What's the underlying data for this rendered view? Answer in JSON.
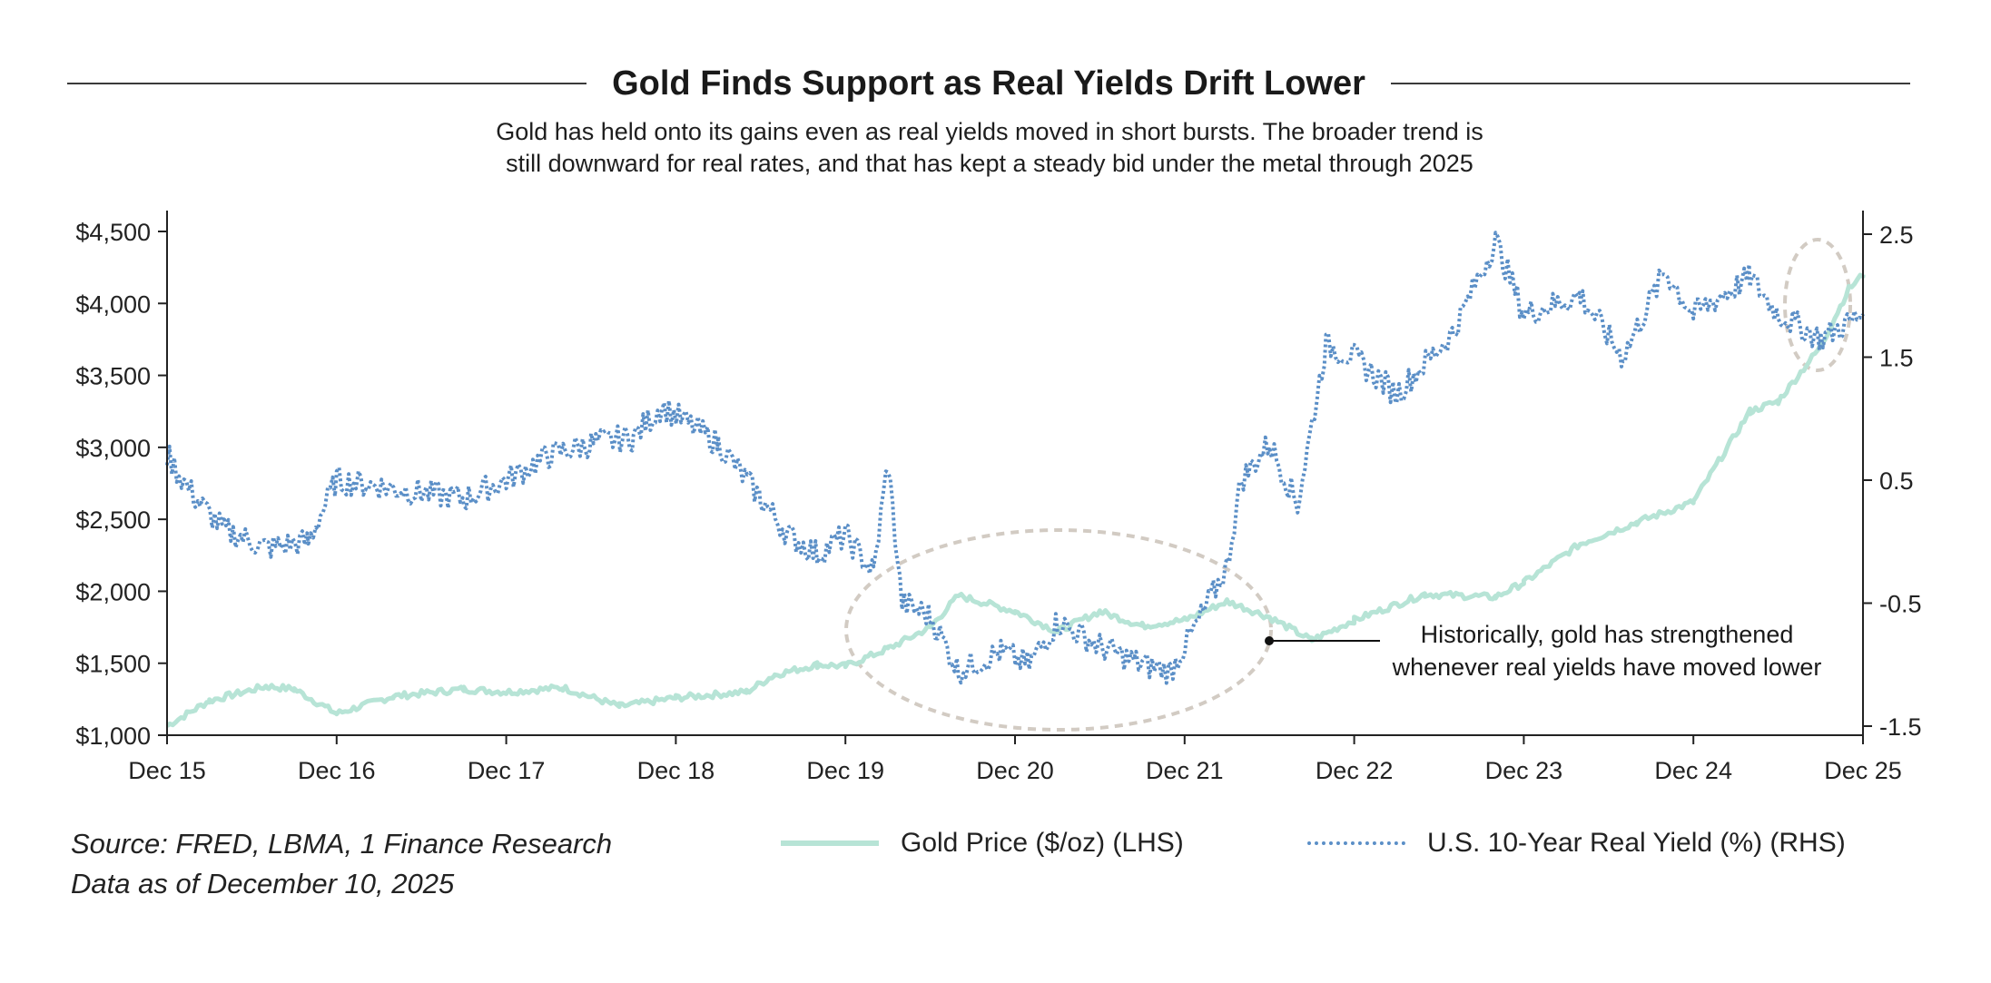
{
  "header": {
    "title": "Gold Finds Support as Real Yields Drift Lower",
    "subtitle_line1": "Gold has held onto its gains even as real yields moved in short bursts. The broader trend is",
    "subtitle_line2": "still downward for real rates, and that has kept a steady bid under the metal through 2025"
  },
  "footer": {
    "source_line1": "Source: FRED, LBMA, 1 Finance Research",
    "source_line2": "Data as of December 10, 2025"
  },
  "colors": {
    "gold_series": "#b7e4d6",
    "yield_series": "#5b8fc7",
    "axis": "#222222",
    "annotation_ellipse": "#d2cbc3"
  },
  "chart_data": {
    "type": "line",
    "x_tick_labels": [
      "Dec 15",
      "Dec 16",
      "Dec 17",
      "Dec 18",
      "Dec 19",
      "Dec 20",
      "Dec 21",
      "Dec 22",
      "Dec 23",
      "Dec 24",
      "Dec 25"
    ],
    "x_range": [
      "2015-12",
      "2025-12"
    ],
    "y_left": {
      "ticks": [
        1000,
        1500,
        2000,
        2500,
        3000,
        3500,
        4000,
        4500
      ],
      "tick_labels": [
        "$1,000",
        "$1,500",
        "$2,000",
        "$2,500",
        "$3,000",
        "$3,500",
        "$4,000",
        "$4,500"
      ],
      "range": [
        1000,
        4600
      ]
    },
    "y_right": {
      "ticks": [
        -1.5,
        -0.5,
        0.5,
        1.5,
        2.5
      ],
      "tick_labels": [
        "-1.5",
        "-0.5",
        "0.5",
        "1.5",
        "2.5"
      ],
      "range": [
        -1.5,
        2.7
      ]
    },
    "legend_position": "bottom",
    "grid": false,
    "series": [
      {
        "name": "Gold Price ($/oz) (LHS)",
        "axis": "left",
        "style": "solid",
        "x": [
          "2015-12",
          "2016-03",
          "2016-07",
          "2016-09",
          "2016-12",
          "2017-04",
          "2017-09",
          "2017-12",
          "2018-04",
          "2018-08",
          "2018-12",
          "2019-05",
          "2019-07",
          "2019-10",
          "2019-12",
          "2020-03",
          "2020-06",
          "2020-08",
          "2020-12",
          "2021-03",
          "2021-06",
          "2021-09",
          "2021-12",
          "2022-03",
          "2022-06",
          "2022-09",
          "2022-12",
          "2023-05",
          "2023-10",
          "2023-12",
          "2024-04",
          "2024-08",
          "2024-12",
          "2025-04",
          "2025-06",
          "2025-09",
          "2025-11",
          "2025-12"
        ],
        "values": [
          1065,
          1240,
          1340,
          1320,
          1150,
          1270,
          1320,
          1300,
          1330,
          1200,
          1260,
          1300,
          1420,
          1490,
          1480,
          1600,
          1750,
          1970,
          1860,
          1720,
          1860,
          1760,
          1800,
          1930,
          1820,
          1660,
          1800,
          1980,
          1960,
          2060,
          2330,
          2480,
          2620,
          3250,
          3320,
          3700,
          4100,
          4200
        ]
      },
      {
        "name": "U.S. 10-Year Real Yield (%) (RHS)",
        "axis": "right",
        "style": "dotted",
        "x": [
          "2015-12",
          "2016-02",
          "2016-04",
          "2016-07",
          "2016-10",
          "2016-12",
          "2017-03",
          "2017-06",
          "2017-09",
          "2017-12",
          "2018-03",
          "2018-06",
          "2018-09",
          "2018-11",
          "2019-03",
          "2019-06",
          "2019-08",
          "2019-10",
          "2019-12",
          "2020-02",
          "2020-03",
          "2020-04",
          "2020-06",
          "2020-08",
          "2020-11",
          "2021-01",
          "2021-03",
          "2021-06",
          "2021-09",
          "2021-11",
          "2022-01",
          "2022-03",
          "2022-04",
          "2022-06",
          "2022-08",
          "2022-10",
          "2022-12",
          "2023-03",
          "2023-07",
          "2023-10",
          "2023-12",
          "2024-04",
          "2024-07",
          "2024-10",
          "2024-12",
          "2025-04",
          "2025-06",
          "2025-09",
          "2025-12"
        ],
        "values": [
          0.7,
          0.35,
          0.1,
          -0.05,
          0.0,
          0.5,
          0.45,
          0.4,
          0.35,
          0.5,
          0.7,
          0.8,
          0.85,
          1.1,
          0.8,
          0.35,
          0.05,
          -0.1,
          0.05,
          -0.25,
          0.65,
          -0.5,
          -0.6,
          -1.05,
          -0.9,
          -1.0,
          -0.65,
          -0.85,
          -1.0,
          -1.05,
          -0.65,
          -0.2,
          0.5,
          0.8,
          0.3,
          1.6,
          1.5,
          1.2,
          1.7,
          2.45,
          1.85,
          2.0,
          1.5,
          2.2,
          1.85,
          2.15,
          1.85,
          1.65,
          1.85
        ]
      }
    ],
    "annotation": "Historically, gold has strengthened whenever real yields have moved lower",
    "annotation_line1": "Historically, gold has strengthened",
    "annotation_line2": "whenever real yields have moved lower"
  }
}
